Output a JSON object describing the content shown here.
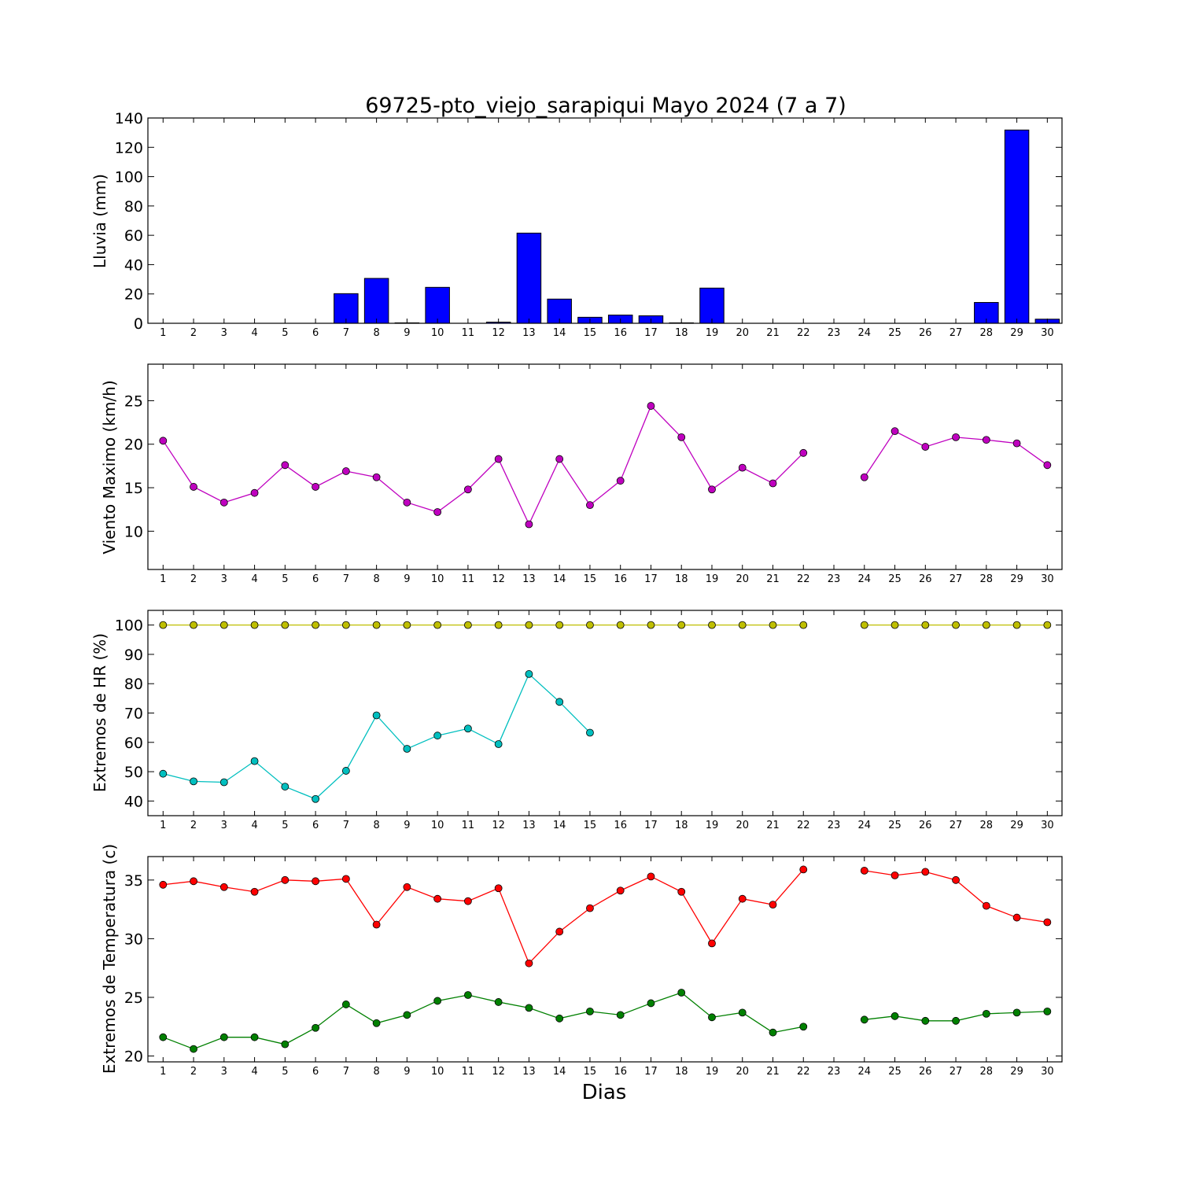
{
  "colors": {
    "rain_bar": "#0000ff",
    "wind": "#bf00bf",
    "hr_max": "#bfbf00",
    "hr_min": "#00bfbf",
    "temp_max": "#ff0000",
    "temp_min": "#008000"
  },
  "chart_data": [
    {
      "type": "bar",
      "title": "69725-pto_viejo_sarapiqui Mayo 2024  (7 a 7)",
      "xlabel": "",
      "ylabel": "Lluvia (mm)",
      "ylim": [
        0,
        140
      ],
      "yticks": [
        "0",
        "20",
        "40",
        "60",
        "80",
        "100",
        "120",
        "140"
      ],
      "categories": [
        "1",
        "2",
        "3",
        "4",
        "5",
        "6",
        "7",
        "8",
        "9",
        "10",
        "11",
        "12",
        "13",
        "14",
        "15",
        "16",
        "17",
        "18",
        "19",
        "20",
        "21",
        "22",
        "23",
        "24",
        "25",
        "26",
        "27",
        "28",
        "29",
        "30"
      ],
      "values": [
        0,
        0,
        0,
        0,
        0,
        0,
        20.2,
        30.6,
        0.3,
        24.5,
        0,
        0.8,
        61.5,
        16.5,
        4.1,
        5.6,
        5.1,
        0.3,
        24.0,
        0,
        0,
        0,
        null,
        0,
        0,
        0,
        0,
        14.2,
        131.8,
        2.8
      ],
      "grid": false
    },
    {
      "type": "line",
      "xlabel": "",
      "ylabel": "Viento Maximo (km/h)",
      "ylim": [
        5.6,
        29.2
      ],
      "yticks": [
        "10",
        "15",
        "20",
        "25"
      ],
      "categories": [
        "1",
        "2",
        "3",
        "4",
        "5",
        "6",
        "7",
        "8",
        "9",
        "10",
        "11",
        "12",
        "13",
        "14",
        "15",
        "16",
        "17",
        "18",
        "19",
        "20",
        "21",
        "22",
        "23",
        "24",
        "25",
        "26",
        "27",
        "28",
        "29",
        "30"
      ],
      "series": [
        {
          "values": [
            20.4,
            15.1,
            13.3,
            14.4,
            17.6,
            15.1,
            16.9,
            16.2,
            13.3,
            12.2,
            14.8,
            18.3,
            10.8,
            18.3,
            13.0,
            15.8,
            24.4,
            20.8,
            14.8,
            17.3,
            15.5,
            19.0,
            null,
            16.2,
            21.5,
            19.7,
            20.8,
            20.5,
            20.1,
            17.6
          ]
        }
      ],
      "grid": false
    },
    {
      "type": "line",
      "xlabel": "",
      "ylabel": "Extremos de HR (%)",
      "ylim": [
        35,
        105
      ],
      "yticks": [
        "40",
        "50",
        "60",
        "70",
        "80",
        "90",
        "100"
      ],
      "categories": [
        "1",
        "2",
        "3",
        "4",
        "5",
        "6",
        "7",
        "8",
        "9",
        "10",
        "11",
        "12",
        "13",
        "14",
        "15",
        "16",
        "17",
        "18",
        "19",
        "20",
        "21",
        "22",
        "23",
        "24",
        "25",
        "26",
        "27",
        "28",
        "29",
        "30"
      ],
      "series": [
        {
          "values": [
            100,
            100,
            100,
            100,
            100,
            100,
            100,
            100,
            100,
            100,
            100,
            100,
            100,
            100,
            100,
            100,
            100,
            100,
            100,
            100,
            100,
            100,
            null,
            100,
            100,
            100,
            100,
            100,
            100,
            100
          ]
        },
        {
          "values": [
            49.3,
            46.7,
            46.4,
            53.6,
            44.9,
            40.7,
            50.3,
            69.2,
            57.8,
            62.3,
            64.7,
            59.4,
            83.3,
            73.8,
            63.3,
            null,
            null,
            null,
            null,
            null,
            null,
            null,
            null,
            null,
            null,
            null,
            null,
            null,
            null,
            null
          ]
        }
      ],
      "grid": false
    },
    {
      "type": "line",
      "xlabel": "Dias",
      "ylabel": "Extremos de Temperatura (c)",
      "ylim": [
        19.5,
        37
      ],
      "yticks": [
        "20",
        "25",
        "30",
        "35"
      ],
      "categories": [
        "1",
        "2",
        "3",
        "4",
        "5",
        "6",
        "7",
        "8",
        "9",
        "10",
        "11",
        "12",
        "13",
        "14",
        "15",
        "16",
        "17",
        "18",
        "19",
        "20",
        "21",
        "22",
        "23",
        "24",
        "25",
        "26",
        "27",
        "28",
        "29",
        "30"
      ],
      "series": [
        {
          "values": [
            34.6,
            34.9,
            34.4,
            34.0,
            35.0,
            34.9,
            35.1,
            31.2,
            34.4,
            33.4,
            33.2,
            34.3,
            27.9,
            30.6,
            32.6,
            34.1,
            35.3,
            34.0,
            29.6,
            33.4,
            32.9,
            35.9,
            null,
            35.8,
            35.4,
            35.7,
            35.0,
            32.8,
            31.8,
            31.4
          ]
        },
        {
          "values": [
            21.6,
            20.6,
            21.6,
            21.6,
            21.0,
            22.4,
            24.4,
            22.8,
            23.5,
            24.7,
            25.2,
            24.6,
            24.1,
            23.2,
            23.8,
            23.5,
            24.5,
            25.4,
            23.3,
            23.7,
            22.0,
            22.5,
            null,
            23.1,
            23.4,
            23.0,
            23.0,
            23.6,
            23.7,
            23.8
          ]
        }
      ],
      "grid": false
    }
  ]
}
